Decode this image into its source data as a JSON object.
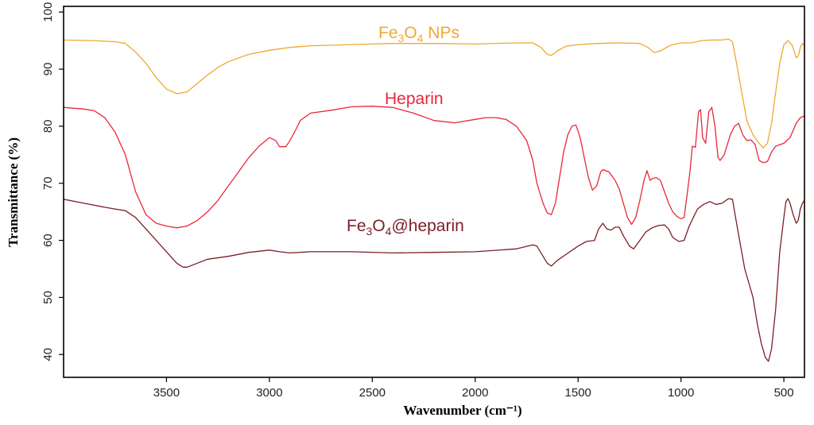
{
  "chart_data": {
    "type": "line",
    "title": "",
    "xlabel": "Wavenumber (cm⁻¹)",
    "ylabel": "Transmittance (%)",
    "xlim": [
      4000,
      400
    ],
    "ylim": [
      36,
      101
    ],
    "x_reversed": true,
    "x_ticks": [
      3500,
      3000,
      2500,
      2000,
      1500,
      1000,
      500
    ],
    "y_ticks": [
      40,
      50,
      60,
      70,
      80,
      90,
      100
    ],
    "grid": false,
    "legend": "none (inline series labels)",
    "series": [
      {
        "name": "Fe₃O₄ NPs",
        "label_parts": {
          "base": "Fe",
          "sub1": "3",
          "mid": "O",
          "sub2": "4",
          "tail": " NPs"
        },
        "color": "#f0a830",
        "points": [
          [
            4000,
            95.1
          ],
          [
            3850,
            95.0
          ],
          [
            3750,
            94.8
          ],
          [
            3700,
            94.5
          ],
          [
            3650,
            93.0
          ],
          [
            3600,
            91.0
          ],
          [
            3550,
            88.5
          ],
          [
            3500,
            86.5
          ],
          [
            3450,
            85.7
          ],
          [
            3400,
            86.0
          ],
          [
            3350,
            87.5
          ],
          [
            3300,
            89.0
          ],
          [
            3250,
            90.3
          ],
          [
            3200,
            91.3
          ],
          [
            3100,
            92.6
          ],
          [
            3000,
            93.3
          ],
          [
            2900,
            93.8
          ],
          [
            2800,
            94.1
          ],
          [
            2600,
            94.3
          ],
          [
            2400,
            94.5
          ],
          [
            2200,
            94.5
          ],
          [
            2000,
            94.4
          ],
          [
            1800,
            94.6
          ],
          [
            1720,
            94.6
          ],
          [
            1680,
            93.8
          ],
          [
            1650,
            92.6
          ],
          [
            1630,
            92.4
          ],
          [
            1600,
            93.2
          ],
          [
            1560,
            94.0
          ],
          [
            1500,
            94.3
          ],
          [
            1400,
            94.5
          ],
          [
            1300,
            94.6
          ],
          [
            1200,
            94.5
          ],
          [
            1160,
            93.8
          ],
          [
            1130,
            92.9
          ],
          [
            1100,
            93.2
          ],
          [
            1050,
            94.2
          ],
          [
            1000,
            94.6
          ],
          [
            950,
            94.6
          ],
          [
            900,
            95.0
          ],
          [
            850,
            95.1
          ],
          [
            800,
            95.1
          ],
          [
            770,
            95.3
          ],
          [
            750,
            94.8
          ],
          [
            730,
            91.0
          ],
          [
            700,
            85.0
          ],
          [
            680,
            81.0
          ],
          [
            650,
            78.5
          ],
          [
            620,
            77.0
          ],
          [
            600,
            76.2
          ],
          [
            580,
            77.0
          ],
          [
            560,
            80.5
          ],
          [
            540,
            86.0
          ],
          [
            520,
            91.0
          ],
          [
            500,
            94.3
          ],
          [
            480,
            95.0
          ],
          [
            460,
            94.2
          ],
          [
            440,
            92.0
          ],
          [
            430,
            92.3
          ],
          [
            420,
            93.8
          ],
          [
            410,
            94.5
          ],
          [
            400,
            94.1
          ]
        ]
      },
      {
        "name": "Heparin",
        "color": "#e8283a",
        "points": [
          [
            4000,
            83.3
          ],
          [
            3900,
            83.0
          ],
          [
            3850,
            82.7
          ],
          [
            3800,
            81.5
          ],
          [
            3750,
            79.0
          ],
          [
            3700,
            75.0
          ],
          [
            3650,
            68.5
          ],
          [
            3600,
            64.5
          ],
          [
            3550,
            63.0
          ],
          [
            3500,
            62.5
          ],
          [
            3450,
            62.2
          ],
          [
            3400,
            62.5
          ],
          [
            3350,
            63.5
          ],
          [
            3300,
            65.0
          ],
          [
            3250,
            67.0
          ],
          [
            3200,
            69.5
          ],
          [
            3150,
            72.0
          ],
          [
            3100,
            74.5
          ],
          [
            3050,
            76.5
          ],
          [
            3000,
            78.0
          ],
          [
            2970,
            77.5
          ],
          [
            2950,
            76.4
          ],
          [
            2920,
            76.4
          ],
          [
            2900,
            77.5
          ],
          [
            2870,
            79.5
          ],
          [
            2850,
            81.0
          ],
          [
            2800,
            82.3
          ],
          [
            2700,
            82.8
          ],
          [
            2600,
            83.4
          ],
          [
            2500,
            83.5
          ],
          [
            2400,
            83.3
          ],
          [
            2300,
            82.3
          ],
          [
            2200,
            81.0
          ],
          [
            2100,
            80.6
          ],
          [
            2000,
            81.2
          ],
          [
            1950,
            81.5
          ],
          [
            1900,
            81.5
          ],
          [
            1850,
            81.2
          ],
          [
            1800,
            80.0
          ],
          [
            1750,
            77.5
          ],
          [
            1720,
            74.0
          ],
          [
            1700,
            70.0
          ],
          [
            1670,
            66.5
          ],
          [
            1650,
            64.8
          ],
          [
            1630,
            64.5
          ],
          [
            1610,
            66.5
          ],
          [
            1590,
            71.0
          ],
          [
            1570,
            75.5
          ],
          [
            1550,
            78.5
          ],
          [
            1530,
            80.0
          ],
          [
            1510,
            80.2
          ],
          [
            1490,
            78.0
          ],
          [
            1470,
            74.5
          ],
          [
            1450,
            71.0
          ],
          [
            1430,
            68.8
          ],
          [
            1410,
            69.5
          ],
          [
            1390,
            72.0
          ],
          [
            1380,
            72.4
          ],
          [
            1350,
            72.0
          ],
          [
            1320,
            70.5
          ],
          [
            1300,
            69.0
          ],
          [
            1280,
            66.5
          ],
          [
            1260,
            64.0
          ],
          [
            1240,
            62.8
          ],
          [
            1220,
            64.0
          ],
          [
            1200,
            67.0
          ],
          [
            1180,
            70.5
          ],
          [
            1165,
            72.2
          ],
          [
            1150,
            70.5
          ],
          [
            1140,
            70.8
          ],
          [
            1120,
            71.0
          ],
          [
            1100,
            70.5
          ],
          [
            1080,
            68.5
          ],
          [
            1060,
            66.5
          ],
          [
            1040,
            65.0
          ],
          [
            1020,
            64.2
          ],
          [
            1000,
            63.8
          ],
          [
            985,
            64.0
          ],
          [
            970,
            68.0
          ],
          [
            955,
            72.5
          ],
          [
            945,
            76.5
          ],
          [
            930,
            76.3
          ],
          [
            915,
            82.5
          ],
          [
            905,
            82.9
          ],
          [
            895,
            78.0
          ],
          [
            880,
            77.0
          ],
          [
            865,
            82.5
          ],
          [
            850,
            83.3
          ],
          [
            835,
            80.0
          ],
          [
            820,
            74.5
          ],
          [
            810,
            74.0
          ],
          [
            790,
            75.0
          ],
          [
            760,
            78.5
          ],
          [
            740,
            80.0
          ],
          [
            720,
            80.5
          ],
          [
            700,
            78.5
          ],
          [
            680,
            77.5
          ],
          [
            660,
            77.6
          ],
          [
            640,
            76.8
          ],
          [
            620,
            74.0
          ],
          [
            600,
            73.6
          ],
          [
            580,
            73.8
          ],
          [
            560,
            75.5
          ],
          [
            540,
            76.5
          ],
          [
            500,
            77.0
          ],
          [
            470,
            78.0
          ],
          [
            440,
            80.5
          ],
          [
            420,
            81.5
          ],
          [
            400,
            81.8
          ]
        ]
      },
      {
        "name": "Fe₃O₄@heparin",
        "label_parts": {
          "base": "Fe",
          "sub1": "3",
          "mid": "O",
          "sub2": "4",
          "tail": "@heparin"
        },
        "color": "#7b1e26",
        "points": [
          [
            4000,
            67.2
          ],
          [
            3900,
            66.5
          ],
          [
            3800,
            65.8
          ],
          [
            3750,
            65.5
          ],
          [
            3700,
            65.2
          ],
          [
            3650,
            64.0
          ],
          [
            3600,
            62.0
          ],
          [
            3550,
            60.0
          ],
          [
            3500,
            58.0
          ],
          [
            3450,
            56.0
          ],
          [
            3420,
            55.3
          ],
          [
            3400,
            55.3
          ],
          [
            3350,
            56.0
          ],
          [
            3300,
            56.7
          ],
          [
            3200,
            57.2
          ],
          [
            3100,
            57.9
          ],
          [
            3000,
            58.3
          ],
          [
            2950,
            58.0
          ],
          [
            2900,
            57.8
          ],
          [
            2800,
            58.0
          ],
          [
            2600,
            58.0
          ],
          [
            2400,
            57.8
          ],
          [
            2200,
            57.9
          ],
          [
            2000,
            58.0
          ],
          [
            1800,
            58.5
          ],
          [
            1720,
            59.2
          ],
          [
            1700,
            59.0
          ],
          [
            1680,
            57.8
          ],
          [
            1650,
            56.0
          ],
          [
            1630,
            55.5
          ],
          [
            1600,
            56.5
          ],
          [
            1560,
            57.5
          ],
          [
            1500,
            59.0
          ],
          [
            1460,
            59.8
          ],
          [
            1420,
            60.0
          ],
          [
            1400,
            62.0
          ],
          [
            1380,
            63.0
          ],
          [
            1360,
            62.0
          ],
          [
            1340,
            61.8
          ],
          [
            1320,
            62.3
          ],
          [
            1300,
            62.3
          ],
          [
            1280,
            60.8
          ],
          [
            1250,
            59.0
          ],
          [
            1230,
            58.5
          ],
          [
            1200,
            60.0
          ],
          [
            1170,
            61.5
          ],
          [
            1140,
            62.2
          ],
          [
            1110,
            62.6
          ],
          [
            1080,
            62.7
          ],
          [
            1060,
            62.0
          ],
          [
            1040,
            60.5
          ],
          [
            1010,
            59.8
          ],
          [
            985,
            60.0
          ],
          [
            960,
            62.5
          ],
          [
            940,
            64.0
          ],
          [
            920,
            65.5
          ],
          [
            890,
            66.3
          ],
          [
            860,
            66.8
          ],
          [
            830,
            66.3
          ],
          [
            800,
            66.5
          ],
          [
            770,
            67.3
          ],
          [
            750,
            67.2
          ],
          [
            730,
            63.0
          ],
          [
            710,
            59.0
          ],
          [
            690,
            55.0
          ],
          [
            670,
            52.5
          ],
          [
            650,
            50.0
          ],
          [
            630,
            45.5
          ],
          [
            610,
            42.0
          ],
          [
            590,
            39.5
          ],
          [
            575,
            38.8
          ],
          [
            560,
            41.0
          ],
          [
            540,
            48.0
          ],
          [
            520,
            58.0
          ],
          [
            500,
            64.0
          ],
          [
            490,
            66.8
          ],
          [
            480,
            67.3
          ],
          [
            470,
            66.5
          ],
          [
            455,
            64.5
          ],
          [
            440,
            63.0
          ],
          [
            430,
            63.5
          ],
          [
            420,
            65.5
          ],
          [
            410,
            66.5
          ],
          [
            400,
            67.0
          ]
        ]
      }
    ]
  }
}
